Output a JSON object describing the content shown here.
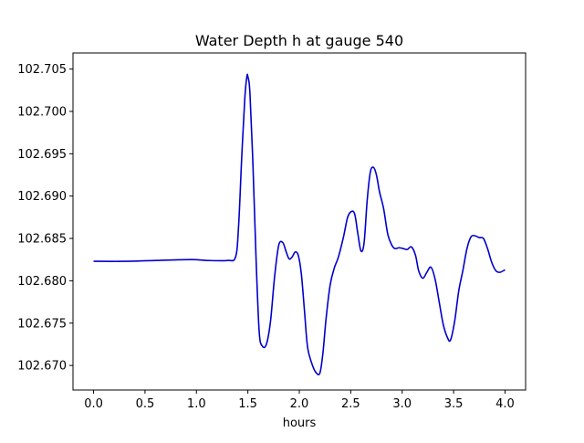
{
  "chart_data": {
    "type": "line",
    "title": "Water Depth h at gauge 540",
    "xlabel": "hours",
    "ylabel": "",
    "xlim": [
      -0.2,
      4.2
    ],
    "ylim": [
      102.6671,
      102.7069
    ],
    "xticks": [
      0.0,
      0.5,
      1.0,
      1.5,
      2.0,
      2.5,
      3.0,
      3.5,
      4.0
    ],
    "xtick_labels": [
      "0.0",
      "0.5",
      "1.0",
      "1.5",
      "2.0",
      "2.5",
      "3.0",
      "3.5",
      "4.0"
    ],
    "yticks": [
      102.67,
      102.675,
      102.68,
      102.685,
      102.69,
      102.695,
      102.7,
      102.705
    ],
    "ytick_labels": [
      "102.670",
      "102.675",
      "102.680",
      "102.685",
      "102.690",
      "102.695",
      "102.700",
      "102.705"
    ],
    "grid": false,
    "series": [
      {
        "name": "",
        "color": "#0000cc",
        "x": [
          0.0,
          0.3,
          0.6,
          0.95,
          1.1,
          1.3,
          1.38,
          1.41,
          1.44,
          1.47,
          1.49,
          1.5,
          1.52,
          1.55,
          1.58,
          1.61,
          1.64,
          1.68,
          1.72,
          1.76,
          1.8,
          1.84,
          1.87,
          1.9,
          1.93,
          1.96,
          1.99,
          2.02,
          2.05,
          2.08,
          2.12,
          2.16,
          2.2,
          2.23,
          2.26,
          2.3,
          2.34,
          2.38,
          2.43,
          2.47,
          2.51,
          2.54,
          2.57,
          2.6,
          2.63,
          2.66,
          2.69,
          2.72,
          2.75,
          2.78,
          2.82,
          2.86,
          2.9,
          2.93,
          2.97,
          3.01,
          3.05,
          3.09,
          3.13,
          3.16,
          3.2,
          3.24,
          3.28,
          3.32,
          3.36,
          3.4,
          3.44,
          3.47,
          3.51,
          3.55,
          3.59,
          3.63,
          3.67,
          3.71,
          3.75,
          3.79,
          3.83,
          3.87,
          3.91,
          3.95,
          4.0
        ],
        "y": [
          102.6823,
          102.6823,
          102.6824,
          102.6825,
          102.6824,
          102.6824,
          102.6828,
          102.6865,
          102.6945,
          102.7015,
          102.7041,
          102.7041,
          102.7022,
          102.6935,
          102.6825,
          102.674,
          102.6723,
          102.6725,
          102.6752,
          102.6805,
          102.6842,
          102.6845,
          102.6835,
          102.6826,
          102.6828,
          102.6834,
          102.683,
          102.6808,
          102.6765,
          102.6722,
          102.6703,
          102.6692,
          102.6691,
          102.6715,
          102.6755,
          102.6795,
          102.6815,
          102.6828,
          102.6852,
          102.6875,
          102.6882,
          102.6878,
          102.6855,
          102.6835,
          102.6845,
          102.6895,
          102.6928,
          102.6934,
          102.6925,
          102.6905,
          102.6885,
          102.6855,
          102.6842,
          102.6838,
          102.6839,
          102.6838,
          102.6837,
          102.684,
          102.683,
          102.6812,
          102.6803,
          102.681,
          102.6816,
          102.6802,
          102.6775,
          102.6748,
          102.6733,
          102.673,
          102.6752,
          102.6788,
          102.6812,
          102.6838,
          102.6852,
          102.6853,
          102.6851,
          102.685,
          102.6838,
          102.6822,
          102.6812,
          102.681,
          102.6813
        ]
      }
    ]
  }
}
